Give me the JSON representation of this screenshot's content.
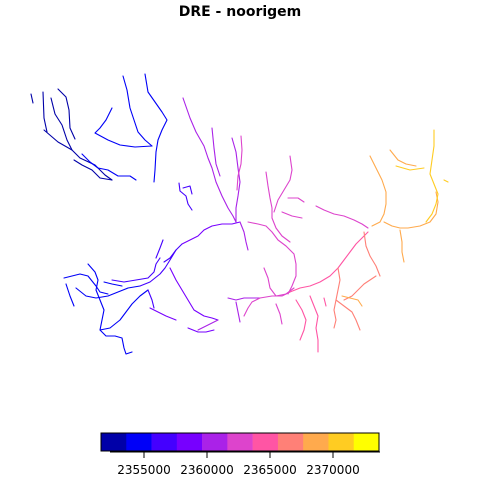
{
  "map": {
    "title": "DRE - noorigem",
    "palette": [
      "#0000a8",
      "#0000f8",
      "#4400ff",
      "#7700ff",
      "#aa22e8",
      "#dd44cc",
      "#ff55a4",
      "#ff8077",
      "#ffaa4d",
      "#ffcc22",
      "#ffff00"
    ],
    "legend": {
      "ticks": [
        "2355000",
        "2360000",
        "2365000",
        "2370000"
      ]
    }
  }
}
